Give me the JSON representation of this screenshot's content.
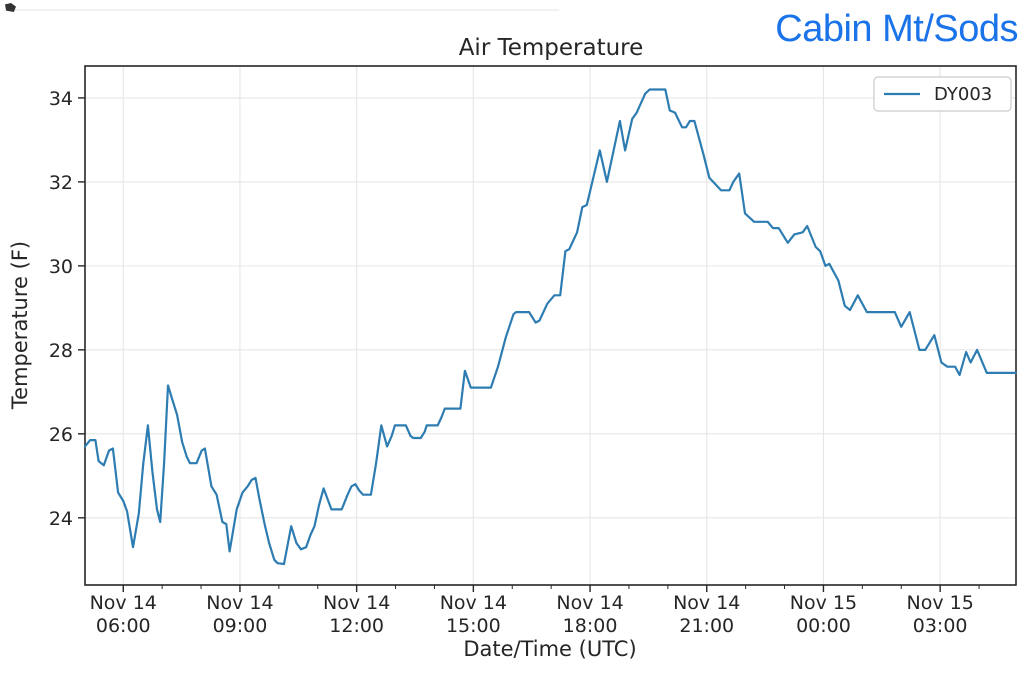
{
  "page": {
    "header": {
      "station": "Cabin Mt/Sods",
      "color": "#1a73e8"
    }
  },
  "chart_data": {
    "type": "line",
    "title": "Air Temperature",
    "xlabel": "Date/Time (UTC)",
    "ylabel": "Temperature (F)",
    "legend_position": "upper right",
    "grid": true,
    "x_unit": "minutes since Nov 14 00:00 UTC",
    "xlim": [
      301,
      1737
    ],
    "ylim": [
      22.4,
      34.76
    ],
    "y_ticks": [
      24,
      26,
      28,
      30,
      32,
      34
    ],
    "x_ticks": [
      {
        "t": 360,
        "line1": "Nov 14",
        "line2": "06:00"
      },
      {
        "t": 540,
        "line1": "Nov 14",
        "line2": "09:00"
      },
      {
        "t": 720,
        "line1": "Nov 14",
        "line2": "12:00"
      },
      {
        "t": 900,
        "line1": "Nov 14",
        "line2": "15:00"
      },
      {
        "t": 1080,
        "line1": "Nov 14",
        "line2": "18:00"
      },
      {
        "t": 1260,
        "line1": "Nov 14",
        "line2": "21:00"
      },
      {
        "t": 1440,
        "line1": "Nov 15",
        "line2": "00:00"
      },
      {
        "t": 1620,
        "line1": "Nov 15",
        "line2": "03:00"
      }
    ],
    "x_minor_step": 60,
    "colors": {
      "line": "#2d7cb2",
      "axis": "#262626",
      "grid": "#e6e6e6",
      "legend_border": "#cccccc"
    },
    "series": [
      {
        "name": "DY003",
        "points": [
          [
            301,
            25.7
          ],
          [
            309,
            25.85
          ],
          [
            317,
            25.85
          ],
          [
            322,
            25.35
          ],
          [
            330,
            25.25
          ],
          [
            338,
            25.6
          ],
          [
            344,
            25.65
          ],
          [
            352,
            24.6
          ],
          [
            360,
            24.4
          ],
          [
            366,
            24.15
          ],
          [
            375,
            23.3
          ],
          [
            384,
            24.1
          ],
          [
            391,
            25.3
          ],
          [
            398,
            26.2
          ],
          [
            405,
            25.1
          ],
          [
            412,
            24.2
          ],
          [
            417,
            23.9
          ],
          [
            423,
            25.3
          ],
          [
            429,
            27.15
          ],
          [
            436,
            26.8
          ],
          [
            443,
            26.45
          ],
          [
            451,
            25.8
          ],
          [
            458,
            25.45
          ],
          [
            463,
            25.3
          ],
          [
            473,
            25.3
          ],
          [
            481,
            25.6
          ],
          [
            486,
            25.65
          ],
          [
            496,
            24.75
          ],
          [
            504,
            24.55
          ],
          [
            513,
            23.9
          ],
          [
            519,
            23.85
          ],
          [
            524,
            23.2
          ],
          [
            535,
            24.2
          ],
          [
            544,
            24.6
          ],
          [
            552,
            24.75
          ],
          [
            558,
            24.9
          ],
          [
            564,
            24.95
          ],
          [
            570,
            24.45
          ],
          [
            578,
            23.85
          ],
          [
            585,
            23.4
          ],
          [
            593,
            23.0
          ],
          [
            598,
            22.92
          ],
          [
            608,
            22.9
          ],
          [
            619,
            23.8
          ],
          [
            627,
            23.4
          ],
          [
            634,
            23.25
          ],
          [
            642,
            23.3
          ],
          [
            649,
            23.6
          ],
          [
            655,
            23.8
          ],
          [
            662,
            24.3
          ],
          [
            669,
            24.7
          ],
          [
            675,
            24.45
          ],
          [
            681,
            24.2
          ],
          [
            697,
            24.2
          ],
          [
            706,
            24.55
          ],
          [
            712,
            24.75
          ],
          [
            718,
            24.8
          ],
          [
            724,
            24.65
          ],
          [
            730,
            24.55
          ],
          [
            742,
            24.55
          ],
          [
            750,
            25.3
          ],
          [
            758,
            26.2
          ],
          [
            767,
            25.7
          ],
          [
            774,
            25.95
          ],
          [
            779,
            26.2
          ],
          [
            796,
            26.2
          ],
          [
            803,
            25.95
          ],
          [
            807,
            25.9
          ],
          [
            819,
            25.9
          ],
          [
            825,
            26.05
          ],
          [
            828,
            26.2
          ],
          [
            845,
            26.2
          ],
          [
            851,
            26.4
          ],
          [
            856,
            26.6
          ],
          [
            880,
            26.6
          ],
          [
            887,
            27.5
          ],
          [
            896,
            27.1
          ],
          [
            927,
            27.1
          ],
          [
            938,
            27.6
          ],
          [
            950,
            28.3
          ],
          [
            962,
            28.85
          ],
          [
            966,
            28.9
          ],
          [
            986,
            28.9
          ],
          [
            996,
            28.65
          ],
          [
            1002,
            28.7
          ],
          [
            1014,
            29.1
          ],
          [
            1025,
            29.3
          ],
          [
            1034,
            29.3
          ],
          [
            1042,
            30.35
          ],
          [
            1048,
            30.4
          ],
          [
            1060,
            30.8
          ],
          [
            1068,
            31.4
          ],
          [
            1075,
            31.45
          ],
          [
            1095,
            32.75
          ],
          [
            1106,
            32.0
          ],
          [
            1126,
            33.45
          ],
          [
            1134,
            32.75
          ],
          [
            1145,
            33.5
          ],
          [
            1152,
            33.65
          ],
          [
            1165,
            34.1
          ],
          [
            1172,
            34.2
          ],
          [
            1196,
            34.2
          ],
          [
            1203,
            33.7
          ],
          [
            1211,
            33.65
          ],
          [
            1222,
            33.3
          ],
          [
            1228,
            33.3
          ],
          [
            1234,
            33.45
          ],
          [
            1241,
            33.45
          ],
          [
            1255,
            32.65
          ],
          [
            1264,
            32.1
          ],
          [
            1273,
            31.95
          ],
          [
            1282,
            31.8
          ],
          [
            1295,
            31.8
          ],
          [
            1301,
            32.0
          ],
          [
            1310,
            32.2
          ],
          [
            1319,
            31.25
          ],
          [
            1333,
            31.05
          ],
          [
            1354,
            31.05
          ],
          [
            1362,
            30.9
          ],
          [
            1371,
            30.9
          ],
          [
            1385,
            30.55
          ],
          [
            1395,
            30.75
          ],
          [
            1408,
            30.8
          ],
          [
            1415,
            30.95
          ],
          [
            1428,
            30.45
          ],
          [
            1435,
            30.35
          ],
          [
            1443,
            30.0
          ],
          [
            1449,
            30.05
          ],
          [
            1463,
            29.65
          ],
          [
            1473,
            29.05
          ],
          [
            1481,
            28.95
          ],
          [
            1493,
            29.3
          ],
          [
            1507,
            28.9
          ],
          [
            1550,
            28.9
          ],
          [
            1560,
            28.55
          ],
          [
            1573,
            28.9
          ],
          [
            1588,
            28.0
          ],
          [
            1597,
            28.0
          ],
          [
            1611,
            28.35
          ],
          [
            1622,
            27.7
          ],
          [
            1631,
            27.6
          ],
          [
            1643,
            27.6
          ],
          [
            1650,
            27.4
          ],
          [
            1660,
            27.95
          ],
          [
            1667,
            27.7
          ],
          [
            1677,
            28.0
          ],
          [
            1692,
            27.45
          ],
          [
            1713,
            27.45
          ],
          [
            1737,
            27.45
          ]
        ]
      }
    ]
  }
}
